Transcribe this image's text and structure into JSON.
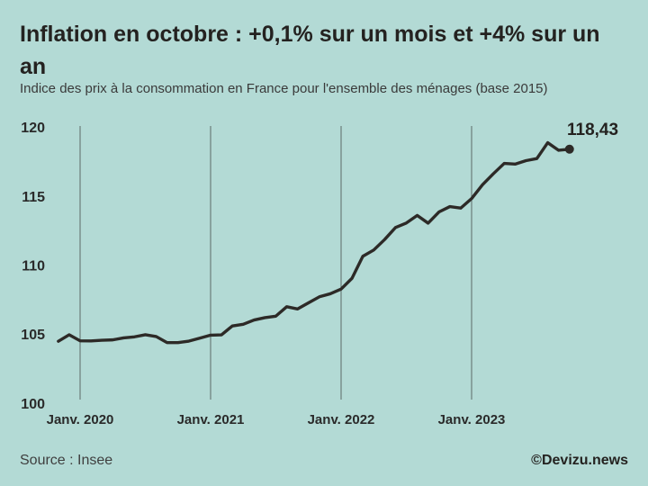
{
  "page": {
    "background_color": "#b3dad5",
    "text_color": "#242220"
  },
  "header": {
    "title": "Inflation en octobre : +0,1% sur un mois et +4% sur un an",
    "subtitle": "Indice des prix à la consommation en France pour l'ensemble des ménages (base 2015)"
  },
  "footer": {
    "source": "Source : Insee",
    "credit": "©Devizu.news"
  },
  "chart_data": {
    "type": "line",
    "title": "Inflation en octobre : +0,1% sur un mois et +4% sur un an",
    "subtitle": "Indice des prix à la consommation en France pour l'ensemble des ménages (base 2015)",
    "series_name": "Indice des prix à la consommation (base 2015)",
    "x": [
      "Nov. 2019",
      "Déc. 2019",
      "Janv. 2020",
      "Févr. 2020",
      "Mars 2020",
      "Avr. 2020",
      "Mai 2020",
      "Juin 2020",
      "Juil. 2020",
      "Août 2020",
      "Sept. 2020",
      "Oct. 2020",
      "Nov. 2020",
      "Déc. 2020",
      "Janv. 2021",
      "Févr. 2021",
      "Mars 2021",
      "Avr. 2021",
      "Mai 2021",
      "Juin 2021",
      "Juil. 2021",
      "Août 2021",
      "Sept. 2021",
      "Oct. 2021",
      "Nov. 2021",
      "Déc. 2021",
      "Janv. 2022",
      "Févr. 2022",
      "Mars 2022",
      "Avr. 2022",
      "Mai 2022",
      "Juin 2022",
      "Juil. 2022",
      "Août 2022",
      "Sept. 2022",
      "Oct. 2022",
      "Nov. 2022",
      "Déc. 2022",
      "Janv. 2023",
      "Févr. 2023",
      "Mars 2023",
      "Avr. 2023",
      "Mai 2023",
      "Juin 2023",
      "Juil. 2023",
      "Août 2023",
      "Sept. 2023",
      "Oct. 2023"
    ],
    "values": [
      104.51,
      104.98,
      104.54,
      104.53,
      104.58,
      104.61,
      104.75,
      104.83,
      104.98,
      104.85,
      104.41,
      104.41,
      104.52,
      104.73,
      104.95,
      104.97,
      105.62,
      105.74,
      106.05,
      106.22,
      106.33,
      107.01,
      106.85,
      107.29,
      107.73,
      107.95,
      108.29,
      109.07,
      110.67,
      111.12,
      111.88,
      112.75,
      113.08,
      113.63,
      113.07,
      113.88,
      114.27,
      114.16,
      114.85,
      115.85,
      116.65,
      117.4,
      117.35,
      117.6,
      117.75,
      118.9,
      118.35,
      118.43
    ],
    "last_value": 118.43,
    "end_label": "118,43",
    "yticks": [
      100,
      105,
      110,
      115,
      120
    ],
    "ylim": [
      100,
      120
    ],
    "x_ticks": [
      {
        "label": "Janv. 2020",
        "index": 2
      },
      {
        "label": "Janv. 2021",
        "index": 14
      },
      {
        "label": "Janv. 2022",
        "index": 26
      },
      {
        "label": "Janv. 2023",
        "index": 38
      }
    ],
    "grid": "vertical",
    "legend": "none",
    "marker": "end-dot",
    "line_color": "#2d2a27",
    "grid_color": "#5c6b68"
  }
}
